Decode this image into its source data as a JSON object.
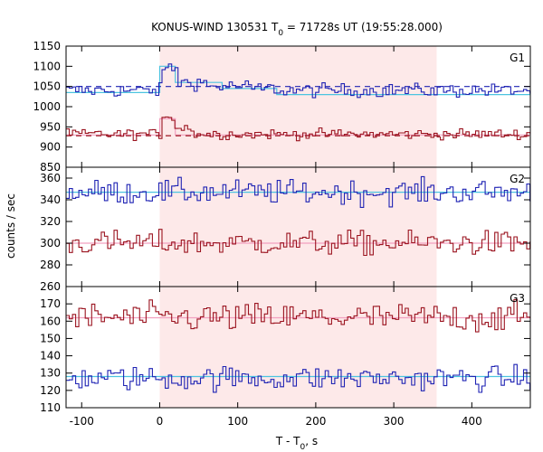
{
  "chart_data": {
    "type": "line",
    "title_main": "KONUS-WIND 130531 T",
    "title_sub": "0",
    "title_rest": " = 71728s UT (19:55:28.000)",
    "xlabel_main": "T - T",
    "xlabel_sub": "0",
    "xlabel_rest": ", s",
    "ylabel": "counts / sec",
    "xlim": [
      -120,
      475
    ],
    "x_ticks": [
      -100,
      0,
      100,
      200,
      300,
      400
    ],
    "x_tick_labels": [
      "-100",
      "0",
      "100",
      "200",
      "300",
      "400"
    ],
    "shaded_interval": [
      0,
      355
    ],
    "colors": {
      "shade": "#fde9e9",
      "blue": "#1f23b4",
      "red": "#9b1420",
      "cyan": "#4cc4e0",
      "pink": "#f2a0c0"
    },
    "panels": [
      {
        "label": "G1",
        "ylim": [
          850,
          1150
        ],
        "y_ticks": [
          850,
          900,
          950,
          1000,
          1050,
          1100,
          1150
        ],
        "y_tick_labels": [
          "850",
          "900",
          "950",
          "1000",
          "1050",
          "1100",
          "1150"
        ],
        "series": [
          {
            "color": "blue",
            "base": 1040,
            "noise": 12,
            "bumps": [
              [
                0,
                20,
                55
              ],
              [
                20,
                60,
                20
              ],
              [
                60,
                110,
                10
              ],
              [
                110,
                150,
                5
              ]
            ]
          },
          {
            "color": "red",
            "base": 932,
            "noise": 9,
            "bumps": [
              [
                0,
                18,
                45
              ],
              [
                18,
                40,
                15
              ]
            ]
          }
        ],
        "fits": [
          {
            "color": "cyan",
            "segments": [
              [
                -120,
                0,
                1035
              ],
              [
                0,
                20,
                1100
              ],
              [
                20,
                80,
                1060
              ],
              [
                80,
                150,
                1045
              ],
              [
                150,
                475,
                1030
              ]
            ]
          },
          {
            "color": "pink",
            "segments": [
              [
                -120,
                0,
                930
              ],
              [
                0,
                20,
                970
              ],
              [
                20,
                475,
                930
              ]
            ]
          }
        ],
        "bg_lines": [
          {
            "color": "blue",
            "level": 1050
          },
          {
            "color": "red",
            "level": 928
          }
        ]
      },
      {
        "label": "G2",
        "ylim": [
          260,
          370
        ],
        "y_ticks": [
          260,
          280,
          300,
          320,
          340,
          360
        ],
        "y_tick_labels": [
          "260",
          "280",
          "300",
          "320",
          "340",
          "360"
        ],
        "series": [
          {
            "color": "blue",
            "base": 347,
            "noise": 8,
            "bumps": []
          },
          {
            "color": "red",
            "base": 300,
            "noise": 8,
            "bumps": []
          }
        ],
        "fits": [
          {
            "color": "cyan",
            "segments": [
              [
                -120,
                475,
                347
              ]
            ]
          },
          {
            "color": "pink",
            "segments": [
              [
                -120,
                475,
                300
              ]
            ]
          }
        ],
        "bg_lines": []
      },
      {
        "label": "G3",
        "ylim": [
          110,
          180
        ],
        "y_ticks": [
          110,
          120,
          130,
          140,
          150,
          160,
          170
        ],
        "y_tick_labels": [
          "110",
          "120",
          "130",
          "140",
          "150",
          "160",
          "170"
        ],
        "series": [
          {
            "color": "red",
            "base": 162,
            "noise": 6,
            "bumps": []
          },
          {
            "color": "blue",
            "base": 127,
            "noise": 5,
            "bumps": []
          }
        ],
        "fits": [
          {
            "color": "pink",
            "segments": [
              [
                -120,
                475,
                162
              ]
            ]
          },
          {
            "color": "cyan",
            "segments": [
              [
                -120,
                475,
                128
              ]
            ]
          }
        ],
        "bg_lines": []
      }
    ]
  }
}
